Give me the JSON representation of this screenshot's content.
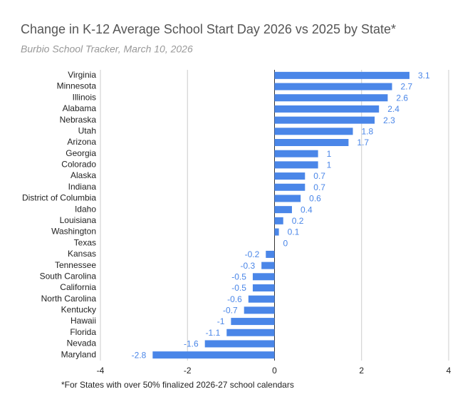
{
  "chart_data": {
    "type": "bar",
    "orientation": "horizontal",
    "title": "Change in K-12 Average School Start Day 2026 vs 2025 by State*",
    "subtitle": "Burbio School Tracker, March 10, 2026",
    "footnote": "*For States with over 50% finalized 2026-27 school calendars",
    "categories": [
      "Virginia",
      "Minnesota",
      "Illinois",
      "Alabama",
      "Nebraska",
      "Utah",
      "Arizona",
      "Georgia",
      "Colorado",
      "Alaska",
      "Indiana",
      "District of Columbia",
      "Idaho",
      "Louisiana",
      "Washington",
      "Texas",
      "Kansas",
      "Tennessee",
      "South Carolina",
      "California",
      "North Carolina",
      "Kentucky",
      "Hawaii",
      "Florida",
      "Nevada",
      "Maryland"
    ],
    "values": [
      3.1,
      2.7,
      2.6,
      2.4,
      2.3,
      1.8,
      1.7,
      1,
      1,
      0.7,
      0.7,
      0.6,
      0.4,
      0.2,
      0.1,
      0,
      -0.2,
      -0.3,
      -0.5,
      -0.5,
      -0.6,
      -0.7,
      -1,
      -1.1,
      -1.6,
      -2.8
    ],
    "color": "#4a86e8",
    "xlim": [
      -4,
      4
    ],
    "xticks": [
      -4,
      -2,
      0,
      2,
      4
    ],
    "grid": true
  }
}
